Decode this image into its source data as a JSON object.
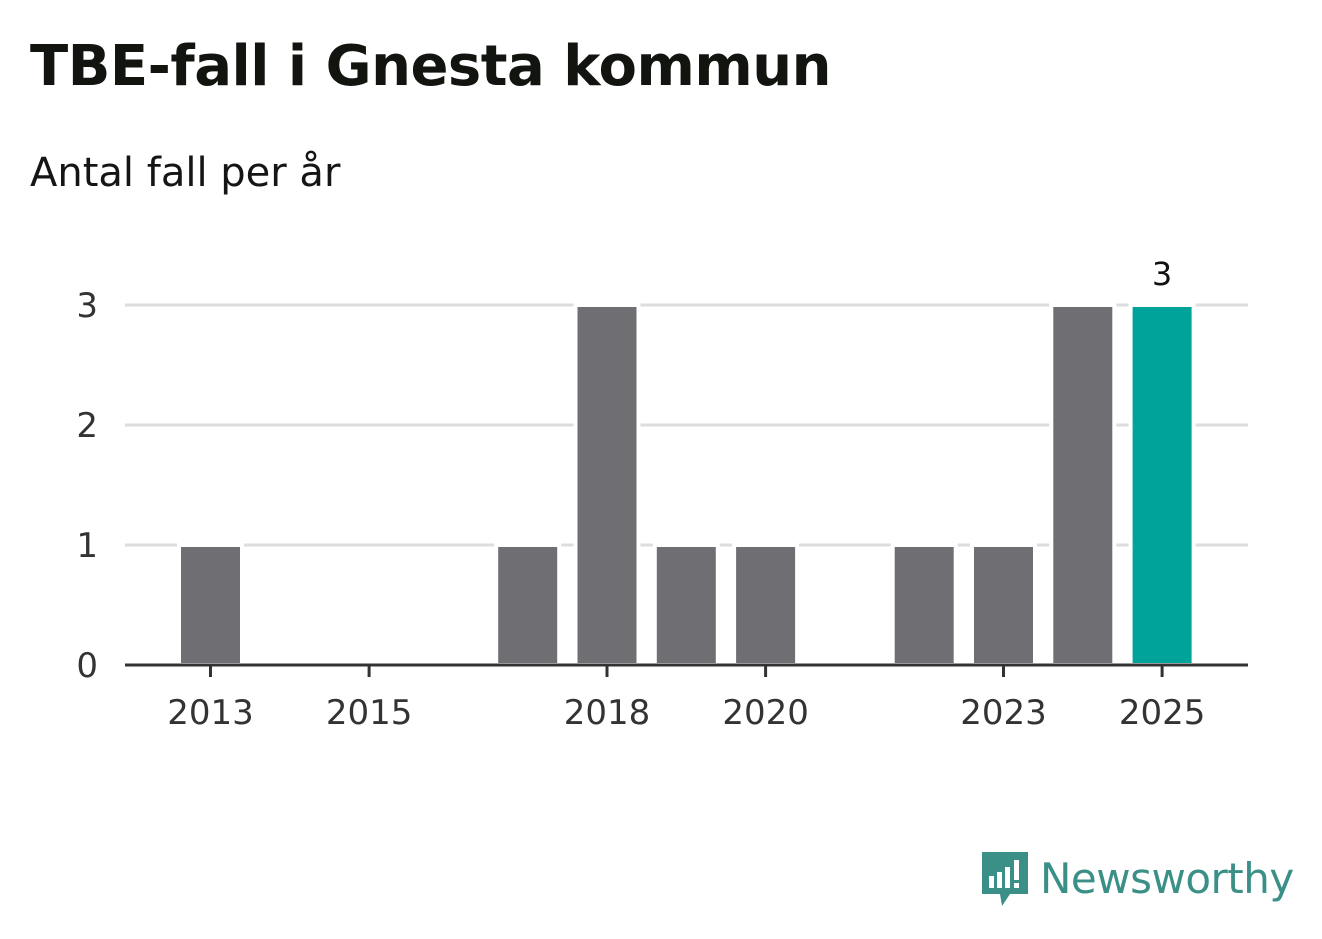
{
  "chart_data": {
    "type": "bar",
    "title": "TBE-fall i Gnesta kommun",
    "subtitle": "Antal fall per år",
    "categories": [
      "2013",
      "2014",
      "2015",
      "2016",
      "2017",
      "2018",
      "2019",
      "2020",
      "2021",
      "2022",
      "2023",
      "2024",
      "2025"
    ],
    "values": [
      1,
      0,
      0,
      0,
      1,
      3,
      1,
      1,
      0,
      1,
      1,
      3,
      3
    ],
    "x_tick_labels": [
      "2013",
      "2015",
      "2018",
      "2020",
      "2023",
      "2025"
    ],
    "y_ticks": [
      0,
      1,
      2,
      3
    ],
    "ylim": [
      0,
      3
    ],
    "highlight_category": "2025",
    "data_labels": [
      {
        "category": "2025",
        "text": "3"
      }
    ],
    "colors": {
      "bar": "#6f6e73",
      "highlight": "#00a39a",
      "grid": "#dddddd",
      "axis": "#333333"
    },
    "grid": true,
    "legend": "none"
  },
  "brand": {
    "name": "Newsworthy",
    "icon": "newsworthy-logo-icon",
    "color": "#3a8f86"
  }
}
